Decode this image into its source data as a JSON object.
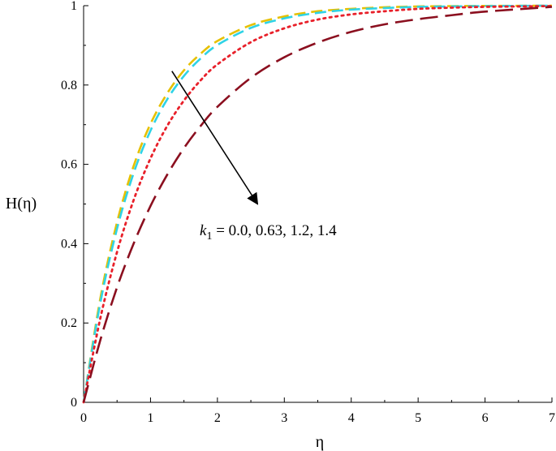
{
  "chart_data": {
    "type": "line",
    "xlabel": "η",
    "ylabel": "H(η)",
    "xlim": [
      0,
      7
    ],
    "ylim": [
      0,
      1
    ],
    "x_ticks": [
      "0",
      "1",
      "2",
      "3",
      "4",
      "5",
      "6",
      "7"
    ],
    "y_ticks": [
      "0",
      "0.2",
      "0.4",
      "0.6",
      "0.8",
      "1"
    ],
    "grid": false,
    "annotation": {
      "variable": "k",
      "subscript": "1",
      "values_text": " = 0.0, 0.63, 1.2, 1.4"
    },
    "arrow": {
      "from": [
        1.32,
        0.835
      ],
      "to": [
        2.6,
        0.5
      ],
      "meaning": "increasing k1"
    },
    "series": [
      {
        "color": "#e6c000",
        "dash": "dash",
        "x": [
          0,
          0.25,
          0.5,
          0.75,
          1,
          1.25,
          1.5,
          1.75,
          2,
          2.5,
          3,
          3.5,
          4,
          4.5,
          5,
          5.5,
          6,
          7
        ],
        "values": [
          0,
          0.262,
          0.454,
          0.597,
          0.702,
          0.779,
          0.837,
          0.879,
          0.911,
          0.951,
          0.973,
          0.986,
          0.992,
          0.996,
          0.998,
          0.999,
          0.9995,
          1.0
        ]
      },
      {
        "color": "#2fd3e6",
        "dash": "dash",
        "x": [
          0,
          0.25,
          0.5,
          0.75,
          1,
          1.25,
          1.5,
          1.75,
          2,
          2.5,
          3,
          3.5,
          4,
          4.5,
          5,
          5.5,
          6,
          7
        ],
        "values": [
          0,
          0.251,
          0.438,
          0.579,
          0.685,
          0.764,
          0.823,
          0.867,
          0.901,
          0.944,
          0.968,
          0.982,
          0.99,
          0.994,
          0.997,
          0.998,
          0.999,
          1.0
        ]
      },
      {
        "color": "#e8202a",
        "dash": "dot",
        "x": [
          0,
          0.25,
          0.5,
          0.75,
          1,
          1.25,
          1.5,
          1.75,
          2,
          2.5,
          3,
          3.5,
          4,
          4.5,
          5,
          5.5,
          6,
          7
        ],
        "values": [
          0,
          0.212,
          0.379,
          0.511,
          0.615,
          0.697,
          0.761,
          0.812,
          0.852,
          0.908,
          0.943,
          0.965,
          0.978,
          0.986,
          0.992,
          0.995,
          0.997,
          0.999
        ]
      },
      {
        "color": "#8b0f1f",
        "dash": "longdash",
        "x": [
          0,
          0.25,
          0.5,
          0.75,
          1,
          1.25,
          1.5,
          1.75,
          2,
          2.5,
          3,
          3.5,
          4,
          4.5,
          5,
          5.5,
          6,
          7
        ],
        "values": [
          0,
          0.157,
          0.29,
          0.401,
          0.495,
          0.574,
          0.641,
          0.697,
          0.745,
          0.818,
          0.87,
          0.907,
          0.934,
          0.953,
          0.966,
          0.976,
          0.985,
          0.997
        ]
      }
    ]
  }
}
